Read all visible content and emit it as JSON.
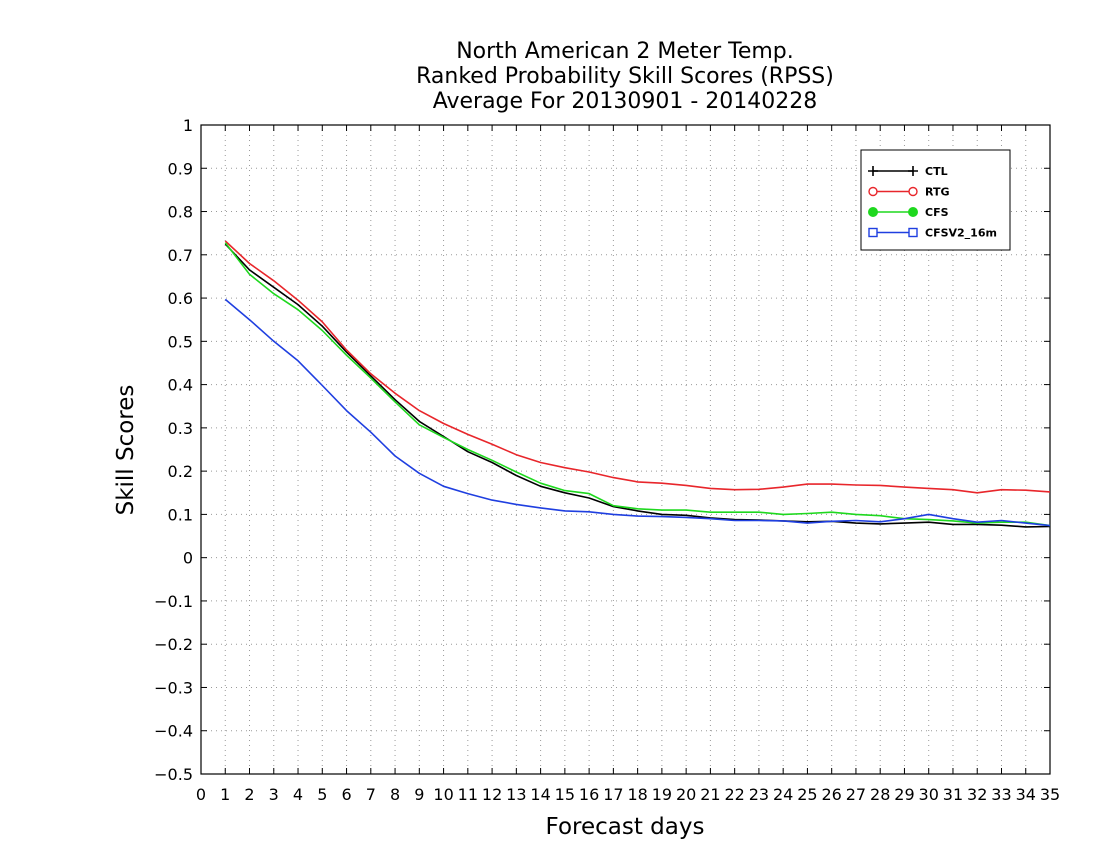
{
  "chart_data": {
    "type": "line",
    "title": [
      "North American 2 Meter Temp.",
      "Ranked Probability Skill Scores (RPSS)",
      "Average For 20130901 - 20140228"
    ],
    "xlabel": "Forecast days",
    "ylabel": "Skill Scores",
    "xlim": [
      0,
      35
    ],
    "ylim": [
      -0.5,
      1
    ],
    "x_ticks": [
      0,
      1,
      2,
      3,
      4,
      5,
      6,
      7,
      8,
      9,
      10,
      11,
      12,
      13,
      14,
      15,
      16,
      17,
      18,
      19,
      20,
      21,
      22,
      23,
      24,
      25,
      26,
      27,
      28,
      29,
      30,
      31,
      32,
      33,
      34,
      35
    ],
    "y_ticks": [
      -0.5,
      -0.4,
      -0.3,
      -0.2,
      -0.1,
      0,
      0.1,
      0.2,
      0.3,
      0.4,
      0.5,
      0.6,
      0.7,
      0.8,
      0.9,
      1
    ],
    "y_tick_labels": [
      "−0.5",
      "−0.4",
      "−0.3",
      "−0.2",
      "−0.1",
      "0",
      "0.1",
      "0.2",
      "0.3",
      "0.4",
      "0.5",
      "0.6",
      "0.7",
      "0.8",
      "0.9",
      "1"
    ],
    "grid": true,
    "legend_position": "top-right",
    "x": [
      1,
      2,
      3,
      4,
      5,
      6,
      7,
      8,
      9,
      10,
      11,
      12,
      13,
      14,
      15,
      16,
      17,
      18,
      19,
      20,
      21,
      22,
      23,
      24,
      25,
      26,
      27,
      28,
      29,
      30,
      31,
      32,
      33,
      34,
      35
    ],
    "series": [
      {
        "name": "CTL",
        "color": "#000000",
        "marker": "plus",
        "values": [
          0.725,
          0.665,
          0.625,
          0.585,
          0.535,
          0.475,
          0.42,
          0.365,
          0.315,
          0.28,
          0.245,
          0.22,
          0.19,
          0.165,
          0.15,
          0.138,
          0.118,
          0.108,
          0.1,
          0.098,
          0.092,
          0.088,
          0.087,
          0.085,
          0.083,
          0.084,
          0.08,
          0.078,
          0.08,
          0.082,
          0.077,
          0.077,
          0.075,
          0.071,
          0.072
        ]
      },
      {
        "name": "RTG",
        "color": "#e8262b",
        "marker": "circle-open",
        "values": [
          0.732,
          0.68,
          0.64,
          0.595,
          0.545,
          0.48,
          0.425,
          0.38,
          0.34,
          0.31,
          0.285,
          0.262,
          0.238,
          0.22,
          0.208,
          0.198,
          0.185,
          0.175,
          0.172,
          0.167,
          0.16,
          0.157,
          0.158,
          0.163,
          0.17,
          0.17,
          0.168,
          0.167,
          0.163,
          0.16,
          0.157,
          0.15,
          0.157,
          0.156,
          0.152
        ]
      },
      {
        "name": "CFS",
        "color": "#1ed81e",
        "marker": "circle-filled",
        "values": [
          0.728,
          0.655,
          0.61,
          0.573,
          0.525,
          0.468,
          0.415,
          0.36,
          0.307,
          0.278,
          0.25,
          0.225,
          0.198,
          0.172,
          0.155,
          0.148,
          0.12,
          0.113,
          0.11,
          0.11,
          0.105,
          0.105,
          0.105,
          0.1,
          0.102,
          0.105,
          0.1,
          0.097,
          0.09,
          0.088,
          0.085,
          0.08,
          0.082,
          0.082,
          0.074
        ]
      },
      {
        "name": "CFSV2_16m",
        "color": "#1f3fe0",
        "marker": "square-open",
        "values": [
          0.597,
          0.55,
          0.5,
          0.455,
          0.398,
          0.34,
          0.29,
          0.235,
          0.195,
          0.165,
          0.148,
          0.133,
          0.123,
          0.115,
          0.108,
          0.106,
          0.1,
          0.096,
          0.095,
          0.093,
          0.09,
          0.086,
          0.086,
          0.085,
          0.08,
          0.084,
          0.086,
          0.083,
          0.09,
          0.1,
          0.09,
          0.082,
          0.086,
          0.08,
          0.074
        ]
      }
    ]
  }
}
